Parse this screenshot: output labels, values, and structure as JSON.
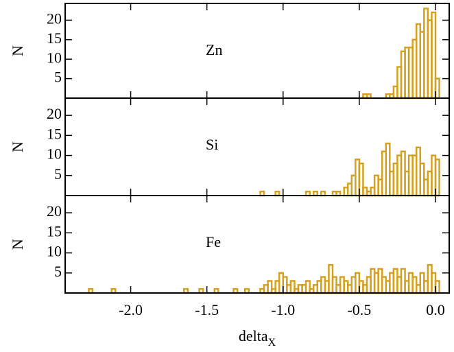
{
  "chart_data": [
    {
      "type": "histogram",
      "ylabel": "N",
      "annotation": "Zn",
      "color": "#d4a020",
      "xlim": [
        -2.43,
        0.09
      ],
      "ylim": [
        0,
        24.3
      ],
      "yticks": [
        5,
        10,
        15,
        20
      ],
      "bins": [
        -0.5,
        -0.475,
        -0.45,
        -0.425,
        -0.4,
        -0.375,
        -0.35,
        -0.325,
        -0.3,
        -0.275,
        -0.25,
        -0.225,
        -0.2,
        -0.175,
        -0.15,
        -0.125,
        -0.1,
        -0.075,
        -0.05,
        -0.025,
        0,
        0.025
      ],
      "values": [
        0,
        1,
        1,
        0,
        0,
        0,
        0,
        1,
        1,
        3,
        8,
        12,
        13,
        13,
        15,
        19,
        17,
        23,
        20,
        22,
        5
      ]
    },
    {
      "type": "histogram",
      "ylabel": "N",
      "annotation": "Si",
      "color": "#d4a020",
      "xlim": [
        -2.43,
        0.09
      ],
      "ylim": [
        0,
        24.3
      ],
      "yticks": [
        5,
        10,
        15,
        20
      ],
      "bins": [
        -1.2,
        -1.175,
        -1.15,
        -1.125,
        -1.1,
        -1.075,
        -1.05,
        -1.025,
        -1,
        -0.975,
        -0.95,
        -0.925,
        -0.9,
        -0.875,
        -0.85,
        -0.825,
        -0.8,
        -0.775,
        -0.75,
        -0.725,
        -0.7,
        -0.675,
        -0.65,
        -0.625,
        -0.6,
        -0.575,
        -0.55,
        -0.525,
        -0.5,
        -0.475,
        -0.45,
        -0.425,
        -0.4,
        -0.375,
        -0.35,
        -0.325,
        -0.3,
        -0.275,
        -0.25,
        -0.225,
        -0.2,
        -0.175,
        -0.15,
        -0.125,
        -0.1,
        -0.075,
        -0.05,
        -0.025,
        0,
        0.025
      ],
      "values": [
        0,
        0,
        1,
        0,
        0,
        0,
        1,
        0,
        0,
        0,
        0,
        0,
        0,
        0,
        1,
        0,
        1,
        0,
        1,
        0,
        0,
        1,
        1,
        0,
        2,
        3,
        5,
        9,
        8,
        2,
        1,
        2,
        5,
        4,
        11,
        13,
        6,
        8,
        10,
        11,
        6,
        10,
        10,
        12,
        8,
        4,
        6,
        10,
        9
      ]
    },
    {
      "type": "histogram",
      "ylabel": "N",
      "annotation": "Fe",
      "color": "#d4a020",
      "xlabel": "delta",
      "xlabel_subscript": "X",
      "xlim": [
        -2.43,
        0.09
      ],
      "ylim": [
        0,
        24.3
      ],
      "yticks": [
        5,
        10,
        15,
        20
      ],
      "xticks": [
        {
          "value": -2,
          "label": "-2.0"
        },
        {
          "value": -1.5,
          "label": "-1.5"
        },
        {
          "value": -1,
          "label": "-1.0"
        },
        {
          "value": -0.5,
          "label": "-0.5"
        },
        {
          "value": 0,
          "label": "0.0"
        }
      ],
      "bins": [
        -2.3,
        -2.275,
        -2.25,
        -2.225,
        -2.2,
        -2.175,
        -2.15,
        -2.125,
        -2.1,
        -2.075,
        -2.05,
        -2.025,
        -2,
        -1.975,
        -1.95,
        -1.925,
        -1.9,
        -1.875,
        -1.85,
        -1.825,
        -1.8,
        -1.775,
        -1.75,
        -1.725,
        -1.7,
        -1.675,
        -1.65,
        -1.625,
        -1.6,
        -1.575,
        -1.55,
        -1.525,
        -1.5,
        -1.475,
        -1.45,
        -1.425,
        -1.4,
        -1.375,
        -1.35,
        -1.325,
        -1.3,
        -1.275,
        -1.25,
        -1.225,
        -1.2,
        -1.175,
        -1.15,
        -1.125,
        -1.1,
        -1.075,
        -1.05,
        -1.025,
        -1,
        -0.975,
        -0.95,
        -0.925,
        -0.9,
        -0.875,
        -0.85,
        -0.825,
        -0.8,
        -0.775,
        -0.75,
        -0.725,
        -0.7,
        -0.675,
        -0.65,
        -0.625,
        -0.6,
        -0.575,
        -0.55,
        -0.525,
        -0.5,
        -0.475,
        -0.45,
        -0.425,
        -0.4,
        -0.375,
        -0.35,
        -0.325,
        -0.3,
        -0.275,
        -0.25,
        -0.225,
        -0.2,
        -0.175,
        -0.15,
        -0.125,
        -0.1,
        -0.075,
        -0.05,
        -0.025,
        0,
        0.025
      ],
      "values": [
        0,
        1,
        0,
        0,
        0,
        0,
        0,
        1,
        0,
        0,
        0,
        0,
        0,
        0,
        0,
        0,
        0,
        0,
        0,
        0,
        0,
        0,
        0,
        0,
        0,
        0,
        1,
        0,
        0,
        0,
        1,
        0,
        0,
        0,
        1,
        0,
        0,
        0,
        0,
        1,
        0,
        0,
        1,
        0,
        0,
        0,
        1,
        2,
        3,
        1,
        3,
        5,
        4,
        2,
        3,
        1,
        2,
        2,
        3,
        1,
        2,
        3,
        4,
        3,
        7,
        4,
        2,
        4,
        3,
        2,
        4,
        5,
        3,
        2,
        4,
        6,
        5,
        6,
        4,
        3,
        5,
        6,
        4,
        6,
        3,
        5,
        4,
        2,
        5,
        3,
        7,
        5,
        3
      ]
    }
  ]
}
